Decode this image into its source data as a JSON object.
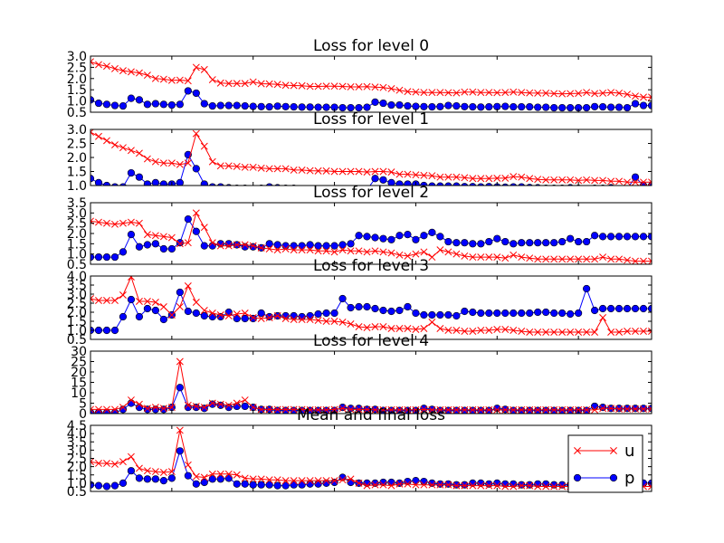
{
  "chart_data": [
    {
      "type": "line",
      "title": "Loss for level 0",
      "xlabel": "",
      "ylabel": "",
      "xlim": [
        0,
        69
      ],
      "ylim": [
        0.5,
        3.0
      ],
      "yticks": [
        "0.5",
        "1.0",
        "1.5",
        "2.0",
        "2.5",
        "3.0"
      ],
      "grid": false,
      "series": [
        {
          "name": "u",
          "color": "#ff0000",
          "marker": "x",
          "values": [
            2.75,
            2.62,
            2.55,
            2.44,
            2.35,
            2.3,
            2.25,
            2.15,
            2.0,
            1.97,
            1.92,
            1.93,
            1.9,
            2.5,
            2.4,
            1.95,
            1.8,
            1.78,
            1.78,
            1.78,
            1.85,
            1.77,
            1.76,
            1.74,
            1.7,
            1.69,
            1.68,
            1.65,
            1.65,
            1.66,
            1.66,
            1.65,
            1.63,
            1.63,
            1.64,
            1.62,
            1.6,
            1.55,
            1.48,
            1.42,
            1.4,
            1.38,
            1.38,
            1.38,
            1.37,
            1.36,
            1.4,
            1.4,
            1.38,
            1.38,
            1.37,
            1.38,
            1.4,
            1.38,
            1.36,
            1.35,
            1.35,
            1.33,
            1.32,
            1.33,
            1.34,
            1.38,
            1.33,
            1.35,
            1.38,
            1.35,
            1.3,
            1.22,
            1.17,
            1.17
          ]
        },
        {
          "name": "p",
          "color": "#0000ff",
          "marker": "o",
          "values": [
            1.05,
            0.9,
            0.85,
            0.8,
            0.78,
            1.12,
            1.05,
            0.85,
            0.88,
            0.85,
            0.82,
            0.85,
            1.45,
            1.35,
            0.88,
            0.78,
            0.8,
            0.8,
            0.8,
            0.78,
            0.76,
            0.75,
            0.74,
            0.77,
            0.75,
            0.74,
            0.73,
            0.73,
            0.72,
            0.72,
            0.72,
            0.7,
            0.7,
            0.7,
            0.72,
            0.95,
            0.9,
            0.82,
            0.82,
            0.78,
            0.76,
            0.75,
            0.74,
            0.75,
            0.8,
            0.78,
            0.75,
            0.74,
            0.73,
            0.74,
            0.75,
            0.76,
            0.74,
            0.74,
            0.74,
            0.72,
            0.72,
            0.7,
            0.7,
            0.7,
            0.7,
            0.7,
            0.75,
            0.74,
            0.72,
            0.72,
            0.7,
            0.88,
            0.8,
            0.8
          ]
        }
      ]
    },
    {
      "type": "line",
      "title": "Loss for level 1",
      "xlabel": "",
      "ylabel": "",
      "xlim": [
        0,
        69
      ],
      "ylim": [
        1.0,
        3.0
      ],
      "yticks": [
        "1.0",
        "1.5",
        "2.0",
        "2.5",
        "3.0"
      ],
      "grid": false,
      "series": [
        {
          "name": "u",
          "color": "#ff0000",
          "marker": "x",
          "values": [
            2.9,
            2.75,
            2.6,
            2.45,
            2.35,
            2.25,
            2.15,
            1.95,
            1.85,
            1.8,
            1.8,
            1.75,
            1.8,
            2.85,
            2.4,
            1.85,
            1.7,
            1.7,
            1.68,
            1.65,
            1.65,
            1.62,
            1.6,
            1.6,
            1.6,
            1.55,
            1.55,
            1.53,
            1.52,
            1.52,
            1.5,
            1.5,
            1.5,
            1.5,
            1.48,
            1.5,
            1.5,
            1.48,
            1.4,
            1.4,
            1.38,
            1.36,
            1.35,
            1.3,
            1.3,
            1.3,
            1.28,
            1.25,
            1.25,
            1.25,
            1.26,
            1.26,
            1.32,
            1.3,
            1.25,
            1.22,
            1.2,
            1.2,
            1.2,
            1.2,
            1.18,
            1.2,
            1.18,
            1.18,
            1.15,
            1.15,
            1.12,
            1.12,
            1.12,
            1.12
          ]
        },
        {
          "name": "p",
          "color": "#0000ff",
          "marker": "o",
          "values": [
            1.25,
            1.1,
            1.0,
            0.95,
            0.95,
            1.45,
            1.3,
            1.05,
            1.1,
            1.05,
            1.05,
            1.1,
            2.1,
            1.6,
            1.05,
            0.95,
            0.95,
            0.92,
            0.9,
            0.9,
            0.88,
            0.9,
            0.95,
            0.92,
            0.9,
            0.9,
            0.88,
            0.88,
            0.87,
            0.86,
            0.85,
            0.85,
            0.84,
            0.83,
            0.85,
            1.25,
            1.2,
            1.1,
            1.05,
            1.05,
            1.05,
            1.0,
            0.98,
            0.98,
            0.98,
            0.98,
            0.96,
            0.96,
            0.95,
            0.96,
            0.95,
            0.94,
            0.95,
            0.95,
            0.93,
            0.92,
            0.9,
            0.9,
            0.9,
            0.92,
            0.9,
            0.88,
            0.9,
            0.9,
            0.92,
            0.88,
            0.88,
            1.3,
            1.0,
            1.0
          ]
        }
      ]
    },
    {
      "type": "line",
      "title": "Loss for level 2",
      "xlabel": "",
      "ylabel": "",
      "xlim": [
        0,
        69
      ],
      "ylim": [
        0.5,
        3.5
      ],
      "yticks": [
        "0.5",
        "1.0",
        "1.5",
        "2.0",
        "2.5",
        "3.0",
        "3.5"
      ],
      "grid": false,
      "series": [
        {
          "name": "u",
          "color": "#ff0000",
          "marker": "x",
          "values": [
            2.6,
            2.55,
            2.5,
            2.45,
            2.5,
            2.55,
            2.5,
            1.95,
            1.9,
            1.85,
            1.8,
            1.5,
            1.55,
            3.0,
            2.3,
            1.55,
            1.4,
            1.4,
            1.45,
            1.45,
            1.4,
            1.3,
            1.25,
            1.2,
            1.25,
            1.2,
            1.2,
            1.2,
            1.15,
            1.15,
            1.1,
            1.2,
            1.15,
            1.15,
            1.1,
            1.15,
            1.1,
            1.05,
            0.95,
            0.9,
            1.0,
            1.1,
            0.85,
            1.2,
            1.1,
            1.0,
            0.9,
            0.85,
            0.85,
            0.85,
            0.85,
            0.8,
            0.95,
            0.85,
            0.8,
            0.75,
            0.75,
            0.75,
            0.75,
            0.75,
            0.75,
            0.75,
            0.75,
            0.85,
            0.75,
            0.75,
            0.7,
            0.65,
            0.65,
            0.65
          ]
        },
        {
          "name": "p",
          "color": "#0000ff",
          "marker": "o",
          "values": [
            0.85,
            0.85,
            0.85,
            0.85,
            1.1,
            1.95,
            1.35,
            1.45,
            1.5,
            1.25,
            1.25,
            1.55,
            2.7,
            2.1,
            1.4,
            1.4,
            1.5,
            1.5,
            1.45,
            1.35,
            1.35,
            1.3,
            1.5,
            1.45,
            1.4,
            1.4,
            1.4,
            1.45,
            1.4,
            1.4,
            1.4,
            1.45,
            1.5,
            1.9,
            1.85,
            1.8,
            1.75,
            1.7,
            1.9,
            1.95,
            1.7,
            1.9,
            2.05,
            1.85,
            1.6,
            1.55,
            1.55,
            1.5,
            1.5,
            1.6,
            1.75,
            1.6,
            1.5,
            1.55,
            1.55,
            1.55,
            1.55,
            1.55,
            1.6,
            1.75,
            1.6,
            1.6,
            1.9,
            1.85,
            1.85,
            1.85,
            1.85,
            1.85,
            1.85,
            1.85
          ]
        }
      ]
    },
    {
      "type": "line",
      "title": "Loss for level 3",
      "xlabel": "",
      "ylabel": "",
      "xlim": [
        0,
        69
      ],
      "ylim": [
        0.5,
        4.0
      ],
      "yticks": [
        "0.5",
        "1.0",
        "1.5",
        "2.0",
        "2.5",
        "3.0",
        "3.5",
        "4.0"
      ],
      "grid": false,
      "series": [
        {
          "name": "u",
          "color": "#ff0000",
          "marker": "x",
          "values": [
            2.75,
            2.65,
            2.65,
            2.65,
            2.95,
            3.95,
            2.6,
            2.6,
            2.55,
            2.3,
            1.85,
            2.3,
            3.45,
            2.55,
            2.1,
            1.95,
            1.85,
            1.8,
            1.9,
            1.95,
            1.7,
            1.65,
            1.7,
            1.8,
            1.65,
            1.6,
            1.6,
            1.6,
            1.55,
            1.5,
            1.5,
            1.45,
            1.35,
            1.2,
            1.15,
            1.2,
            1.2,
            1.1,
            1.1,
            1.1,
            1.05,
            1.1,
            1.45,
            1.1,
            1.0,
            1.0,
            0.95,
            0.95,
            1.0,
            1.0,
            1.05,
            1.05,
            1.0,
            0.95,
            0.9,
            0.9,
            0.9,
            0.9,
            0.9,
            0.9,
            0.9,
            0.9,
            0.9,
            1.7,
            0.9,
            0.9,
            0.95,
            0.95,
            0.95,
            0.95
          ]
        },
        {
          "name": "p",
          "color": "#0000ff",
          "marker": "o",
          "values": [
            1.0,
            1.0,
            1.0,
            1.0,
            1.75,
            2.7,
            1.75,
            2.2,
            2.1,
            1.6,
            1.85,
            3.1,
            2.05,
            1.95,
            1.8,
            1.75,
            1.75,
            2.0,
            1.65,
            1.65,
            1.65,
            1.95,
            1.75,
            1.8,
            1.8,
            1.8,
            1.75,
            1.8,
            1.9,
            1.95,
            1.95,
            2.75,
            2.25,
            2.3,
            2.3,
            2.2,
            2.1,
            2.05,
            2.1,
            2.3,
            1.95,
            1.85,
            1.85,
            1.85,
            1.85,
            1.8,
            2.05,
            2.0,
            1.95,
            1.95,
            1.95,
            1.95,
            1.95,
            1.95,
            1.95,
            2.0,
            2.0,
            1.95,
            1.95,
            1.9,
            1.95,
            3.3,
            2.1,
            2.2,
            2.2,
            2.2,
            2.2,
            2.2,
            2.2,
            2.2
          ]
        }
      ]
    },
    {
      "type": "line",
      "title": "Loss for level 4",
      "xlabel": "",
      "ylabel": "",
      "xlim": [
        0,
        69
      ],
      "ylim": [
        0,
        30
      ],
      "yticks": [
        "0",
        "5",
        "10",
        "15",
        "20",
        "25",
        "30"
      ],
      "grid": false,
      "series": [
        {
          "name": "u",
          "color": "#ff0000",
          "marker": "x",
          "values": [
            2.0,
            2.0,
            2.0,
            2.0,
            3.0,
            6.5,
            4.5,
            2.5,
            3.0,
            2.5,
            3.0,
            25.0,
            4.0,
            3.5,
            3.0,
            5.0,
            4.5,
            4.0,
            5.0,
            6.5,
            3.0,
            2.0,
            2.0,
            2.0,
            2.0,
            2.0,
            2.0,
            1.8,
            1.8,
            1.8,
            2.0,
            2.5,
            2.0,
            2.0,
            2.0,
            1.8,
            1.8,
            1.8,
            1.8,
            1.8,
            1.8,
            2.0,
            1.8,
            1.8,
            1.8,
            1.8,
            1.8,
            1.8,
            1.8,
            1.8,
            1.8,
            1.8,
            1.8,
            1.8,
            1.8,
            1.8,
            1.8,
            1.8,
            1.8,
            1.8,
            1.8,
            1.8,
            1.8,
            2.5,
            2.5,
            2.2,
            2.2,
            2.2,
            2.2,
            2.2
          ]
        },
        {
          "name": "p",
          "color": "#0000ff",
          "marker": "o",
          "values": [
            0.5,
            0.5,
            0.5,
            0.5,
            2.0,
            5.0,
            3.0,
            2.0,
            2.0,
            2.0,
            3.0,
            12.5,
            3.0,
            3.0,
            2.5,
            4.5,
            4.0,
            3.0,
            3.5,
            3.5,
            3.0,
            2.0,
            2.0,
            1.5,
            1.5,
            1.5,
            1.5,
            1.5,
            1.5,
            1.5,
            1.5,
            3.0,
            2.5,
            2.5,
            2.0,
            2.0,
            1.5,
            1.5,
            1.5,
            1.5,
            1.5,
            2.5,
            2.0,
            1.5,
            1.5,
            1.5,
            1.5,
            1.5,
            1.5,
            1.5,
            2.5,
            2.0,
            1.5,
            1.5,
            1.5,
            1.5,
            1.5,
            1.5,
            1.5,
            1.5,
            1.5,
            1.5,
            3.5,
            3.0,
            2.5,
            2.5,
            2.5,
            2.5,
            2.5,
            2.5
          ]
        }
      ]
    },
    {
      "type": "line",
      "title": "Mean and final loss",
      "xlabel": "",
      "ylabel": "",
      "xlim": [
        0,
        69
      ],
      "ylim": [
        0.5,
        4.5
      ],
      "yticks": [
        "0.5",
        "1.0",
        "1.5",
        "2.0",
        "2.5",
        "3.0",
        "3.5",
        "4.0",
        "4.5"
      ],
      "grid": false,
      "legend": {
        "placement": "right",
        "entries": [
          "u",
          "p"
        ]
      },
      "series": [
        {
          "name": "u",
          "color": "#ff0000",
          "marker": "x",
          "values": [
            2.3,
            2.2,
            2.2,
            2.15,
            2.3,
            2.6,
            1.9,
            1.75,
            1.7,
            1.65,
            1.7,
            4.2,
            2.1,
            1.4,
            1.35,
            1.55,
            1.55,
            1.55,
            1.5,
            1.3,
            1.25,
            1.25,
            1.2,
            1.2,
            1.15,
            1.15,
            1.15,
            1.15,
            1.15,
            1.15,
            1.15,
            1.2,
            1.25,
            1.0,
            0.85,
            0.9,
            0.9,
            0.85,
            0.95,
            0.95,
            0.9,
            0.9,
            0.9,
            0.9,
            0.9,
            0.85,
            0.85,
            0.85,
            0.85,
            0.85,
            0.85,
            0.8,
            0.8,
            0.85,
            0.85,
            0.8,
            0.8,
            0.8,
            0.8,
            0.8,
            0.8,
            0.8,
            0.8,
            0.8,
            0.8,
            0.8,
            0.8,
            0.8,
            0.8,
            0.8
          ]
        },
        {
          "name": "p",
          "color": "#0000ff",
          "marker": "o",
          "values": [
            0.9,
            0.85,
            0.8,
            0.85,
            1.0,
            1.75,
            1.3,
            1.25,
            1.25,
            1.15,
            1.3,
            2.95,
            1.45,
            0.95,
            1.05,
            1.25,
            1.25,
            1.3,
            0.95,
            0.95,
            0.9,
            0.9,
            0.9,
            0.85,
            0.85,
            0.9,
            0.9,
            0.95,
            0.95,
            1.0,
            1.05,
            1.35,
            1.05,
            1.0,
            1.0,
            1.0,
            1.05,
            1.05,
            1.0,
            1.1,
            1.15,
            1.1,
            1.0,
            0.95,
            0.95,
            0.9,
            0.9,
            1.0,
            1.0,
            0.95,
            1.0,
            0.95,
            0.95,
            0.9,
            0.9,
            0.95,
            0.95,
            0.9,
            0.9,
            0.9,
            0.9,
            0.9,
            0.9,
            1.05,
            1.0,
            1.0,
            1.0,
            1.0,
            1.0,
            1.0
          ]
        }
      ]
    }
  ]
}
